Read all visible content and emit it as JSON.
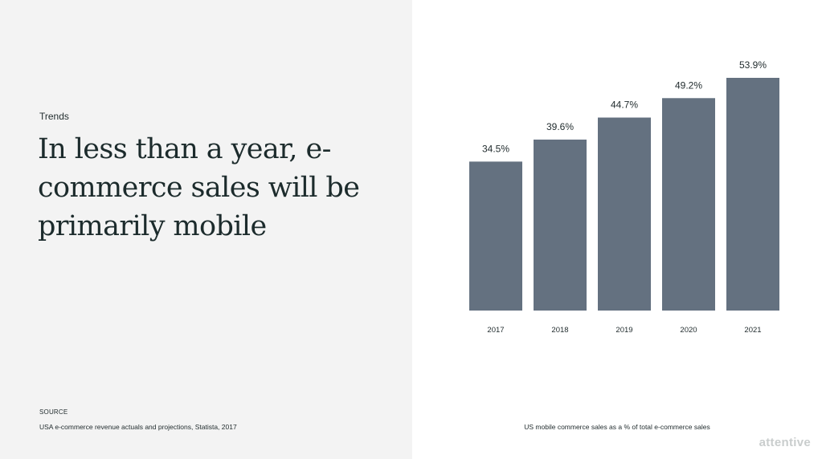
{
  "eyebrow": "Trends",
  "headline": "In less than a year, e-commerce sales will be primarily mobile",
  "source": {
    "label": "SOURCE",
    "text": "USA e-commerce revenue actuals and projections, Statista, 2017"
  },
  "caption": "US mobile commerce sales as a % of total e-commerce sales",
  "brand": "attentive",
  "chart_data": {
    "type": "bar",
    "categories": [
      "2017",
      "2018",
      "2019",
      "2020",
      "2021"
    ],
    "values": [
      34.5,
      39.6,
      44.7,
      49.2,
      53.9
    ],
    "value_labels": [
      "34.5%",
      "39.6%",
      "44.7%",
      "49.2%",
      "53.9%"
    ],
    "title": "",
    "xlabel": "",
    "ylabel": "",
    "ylim": [
      0,
      53.9
    ],
    "grid": false,
    "legend": "none",
    "bar_color": "#647180"
  }
}
